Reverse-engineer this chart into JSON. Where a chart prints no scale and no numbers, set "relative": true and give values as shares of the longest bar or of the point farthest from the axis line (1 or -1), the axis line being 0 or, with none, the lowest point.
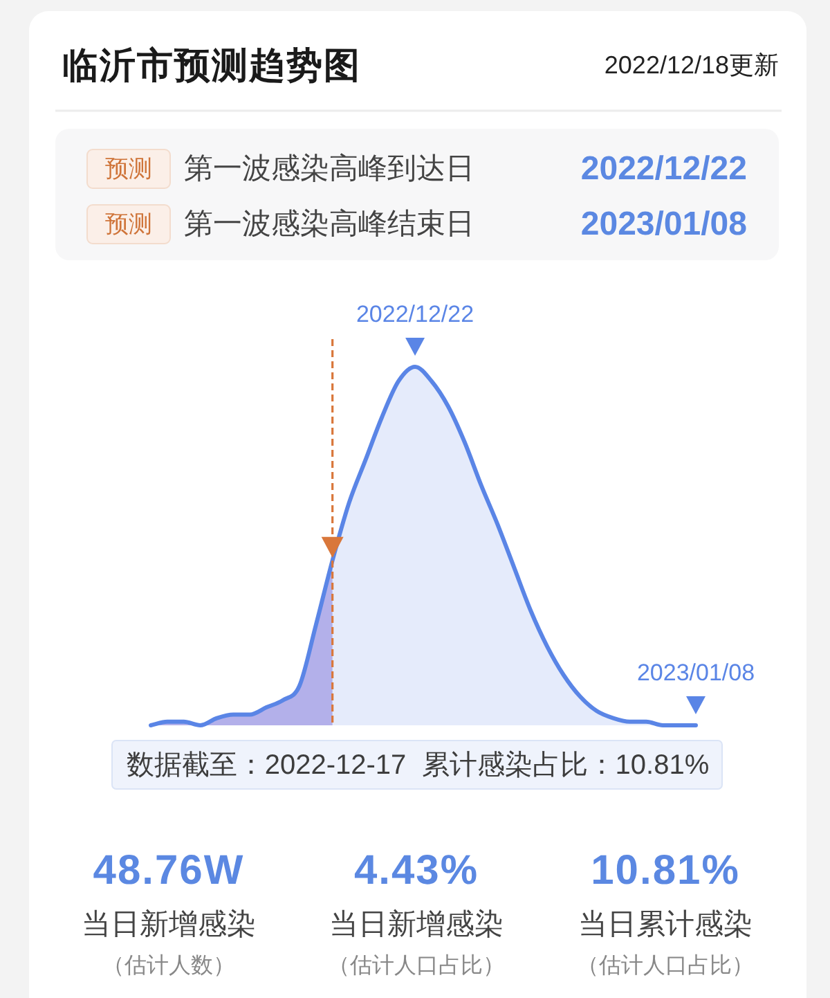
{
  "chart_data": {
    "type": "area",
    "title": "临沂市预测趋势图",
    "subtitle": "2022/12/18更新",
    "relative": true,
    "categories": [
      null,
      null,
      null,
      null,
      null,
      null,
      null,
      null,
      null,
      null,
      null,
      null,
      null,
      null,
      null,
      null,
      null,
      null,
      null,
      null,
      null,
      null,
      null,
      null,
      null,
      null,
      null,
      null,
      null,
      null,
      null,
      null,
      null,
      null
    ],
    "series": [
      {
        "type": "area",
        "color": "#5a85e6",
        "values": [
          0,
          0.01,
          0.01,
          0,
          0.02,
          0.03,
          0.03,
          0.05,
          0.07,
          0.11,
          0.28,
          0.46,
          0.62,
          0.74,
          0.86,
          0.96,
          1,
          0.96,
          0.89,
          0.79,
          0.67,
          0.56,
          0.44,
          0.32,
          0.22,
          0.14,
          0.08,
          0.04,
          0.02,
          0.01,
          0.01,
          0,
          0,
          0
        ]
      },
      {
        "type": "area",
        "color": "#b3b0ea",
        "values": [
          0,
          0.01,
          0.01,
          0,
          0.02,
          0.03,
          0.03,
          0.05,
          0.07,
          0.11,
          0.28,
          0.46,
          null,
          null,
          null,
          null,
          null,
          null,
          null,
          null,
          null,
          null,
          null,
          null,
          null,
          null,
          null,
          null,
          null,
          null,
          null,
          null,
          null,
          null
        ]
      }
    ],
    "annotations": [
      "预测",
      "第一波感染高峰到达日",
      "2022/12/22",
      "预测",
      "第一波感染高峰结束日",
      "2023/01/08",
      "2022/12/22",
      "2023/01/08",
      "数据截至：2022-12-17  累计感染占比：10.81%",
      "48.76W",
      "当日新增感染",
      "（估计人数）",
      "4.43%",
      "当日新增感染",
      "（估计人口占比）",
      "10.81%",
      "当日累计感染",
      "（估计人口占比）"
    ]
  }
}
